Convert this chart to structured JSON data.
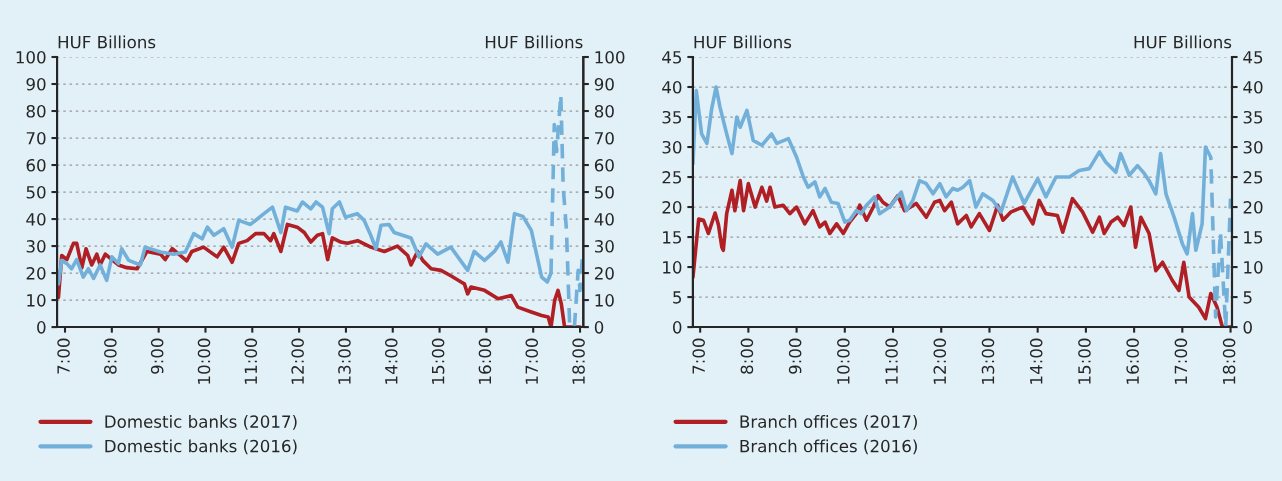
{
  "chart_data": [
    {
      "type": "line",
      "ylabel": "HUF Billions",
      "y2label": "HUF Billions",
      "xlim": [
        6.83,
        18.07
      ],
      "xticks": [
        {
          "value": 7,
          "label": "7:00"
        },
        {
          "value": 8,
          "label": "8:00"
        },
        {
          "value": 9,
          "label": "9:00"
        },
        {
          "value": 10,
          "label": "10:00"
        },
        {
          "value": 11,
          "label": "11:00"
        },
        {
          "value": 12,
          "label": "12:00"
        },
        {
          "value": 13,
          "label": "13:00"
        },
        {
          "value": 14,
          "label": "14:00"
        },
        {
          "value": 15,
          "label": "15:00"
        },
        {
          "value": 16,
          "label": "16:00"
        },
        {
          "value": 17,
          "label": "17:00"
        },
        {
          "value": 18,
          "label": "18:00"
        }
      ],
      "ylim": [
        0,
        100
      ],
      "yticks": [
        0,
        10,
        20,
        30,
        40,
        50,
        60,
        70,
        80,
        90,
        100
      ],
      "y2lim": [
        0,
        100
      ],
      "y2ticks": [
        0,
        10,
        20,
        30,
        40,
        50,
        60,
        70,
        80,
        90,
        100
      ],
      "grid": "y",
      "legend": "bottom left",
      "series": [
        {
          "name": "Domestic banks (2017)",
          "color": "#b01f24",
          "line_style": "solid",
          "x": [
            6.86,
            6.93,
            7.04,
            7.18,
            7.25,
            7.36,
            7.45,
            7.57,
            7.68,
            7.75,
            7.86,
            8.0,
            8.14,
            8.32,
            8.54,
            8.75,
            9.04,
            9.14,
            9.29,
            9.43,
            9.6,
            9.71,
            9.96,
            10.25,
            10.39,
            10.57,
            10.71,
            10.89,
            11.07,
            11.25,
            11.39,
            11.46,
            11.61,
            11.75,
            11.96,
            12.11,
            12.25,
            12.39,
            12.5,
            12.61,
            12.71,
            12.89,
            13.03,
            13.25,
            13.53,
            13.82,
            14.1,
            14.32,
            14.39,
            14.53,
            14.64,
            14.82,
            15.03,
            15.24,
            15.46,
            15.53,
            15.6,
            15.67,
            15.96,
            16.25,
            16.53,
            16.67,
            16.96,
            17.18,
            17.32,
            17.38,
            17.46,
            17.53,
            17.6,
            17.67,
            17.96,
            18.0
          ],
          "values": [
            11,
            26.5,
            25,
            31,
            31,
            22,
            29,
            23,
            27,
            23,
            27,
            25,
            23,
            22,
            21.6,
            28,
            27,
            25,
            29,
            27,
            24.5,
            28,
            29.6,
            26,
            29.6,
            24,
            31,
            32,
            34.6,
            34.6,
            32,
            34.6,
            28,
            38,
            37,
            35,
            31.5,
            34,
            34.6,
            25,
            33,
            31.5,
            31,
            32,
            29.6,
            28,
            30,
            26.5,
            23,
            28,
            24.7,
            21.6,
            21,
            19,
            16.7,
            16,
            12.3,
            14.8,
            13.6,
            10.5,
            11.7,
            7.4,
            5.6,
            4.3,
            3.7,
            0,
            10,
            13.6,
            8.6,
            0,
            0,
            0
          ]
        },
        {
          "name": "Domestic banks (2016)",
          "color": "#72b0da",
          "line_style": "solid",
          "x": [
            6.86,
            6.93,
            7.04,
            7.14,
            7.25,
            7.39,
            7.5,
            7.61,
            7.75,
            7.89,
            8.0,
            8.14,
            8.21,
            8.36,
            8.61,
            8.71,
            9.04,
            9.32,
            9.57,
            9.75,
            9.93,
            10.04,
            10.18,
            10.39,
            10.57,
            10.71,
            10.96,
            11.25,
            11.43,
            11.61,
            11.71,
            11.96,
            12.07,
            12.25,
            12.36,
            12.5,
            12.64,
            12.71,
            12.86,
            12.99,
            13.24,
            13.39,
            13.53,
            13.64,
            13.75,
            13.92,
            14.03,
            14.39,
            14.56,
            14.71,
            14.96,
            15.24,
            15.6,
            15.74,
            15.96,
            16.17,
            16.31,
            16.46,
            16.6,
            16.78,
            16.96,
            17.18,
            17.3,
            17.38
          ],
          "values": [
            16,
            24.7,
            23.5,
            21.6,
            25,
            18.5,
            21.6,
            18,
            23,
            17.3,
            26,
            23.5,
            29,
            24.7,
            23,
            29.6,
            27.8,
            27,
            27.8,
            34.6,
            32.7,
            37,
            34,
            36.4,
            29.6,
            39.5,
            38,
            42,
            44.4,
            35,
            44.4,
            43,
            46.3,
            43.8,
            46.3,
            44.4,
            34.6,
            43.8,
            46.3,
            40.7,
            42,
            39.5,
            34,
            29,
            37.7,
            38,
            35,
            33,
            26,
            30.8,
            27,
            29.6,
            21,
            28,
            24.7,
            28,
            31.5,
            24,
            42,
            41,
            35.8,
            18.5,
            16.7,
            20
          ]
        },
        {
          "color": "#72b0da",
          "line_style": "dashed",
          "x": [
            17.38,
            17.45,
            17.5,
            17.59,
            17.64,
            17.71,
            17.78,
            17.88,
            17.96,
            18.0,
            18.05
          ],
          "values": [
            20,
            75,
            65,
            86,
            52,
            36,
            0,
            0,
            21,
            13.6,
            26
          ]
        }
      ]
    },
    {
      "type": "line",
      "ylabel": "HUF Billions",
      "y2label": "HUF Billions",
      "xlim": [
        6.85,
        18.03
      ],
      "xticks": [
        {
          "value": 7,
          "label": "7:00"
        },
        {
          "value": 8,
          "label": "8:00"
        },
        {
          "value": 9,
          "label": "9:00"
        },
        {
          "value": 10,
          "label": "10:00"
        },
        {
          "value": 11,
          "label": "11:00"
        },
        {
          "value": 12,
          "label": "12:00"
        },
        {
          "value": 13,
          "label": "13:00"
        },
        {
          "value": 14,
          "label": "14:00"
        },
        {
          "value": 15,
          "label": "15:00"
        },
        {
          "value": 16,
          "label": "16:00"
        },
        {
          "value": 17,
          "label": "17:00"
        },
        {
          "value": 18,
          "label": "18:00"
        }
      ],
      "ylim": [
        0,
        45
      ],
      "yticks": [
        0,
        5,
        10,
        15,
        20,
        25,
        30,
        35,
        40,
        45
      ],
      "y2lim": [
        0,
        45
      ],
      "y2ticks": [
        0,
        5,
        10,
        15,
        20,
        25,
        30,
        35,
        40,
        45
      ],
      "grid": "y",
      "legend": "bottom left",
      "series": [
        {
          "name": "Branch offices (2017)",
          "color": "#b01f24",
          "line_style": "solid",
          "x": [
            6.85,
            6.97,
            7.07,
            7.17,
            7.31,
            7.38,
            7.45,
            7.48,
            7.55,
            7.66,
            7.72,
            7.83,
            7.9,
            8.0,
            8.14,
            8.28,
            8.38,
            8.45,
            8.55,
            8.72,
            8.86,
            9.0,
            9.17,
            9.34,
            9.48,
            9.59,
            9.69,
            9.83,
            9.97,
            10.1,
            10.24,
            10.31,
            10.45,
            10.59,
            10.69,
            10.79,
            10.93,
            11.1,
            11.24,
            11.48,
            11.69,
            11.86,
            11.97,
            12.07,
            12.21,
            12.34,
            12.52,
            12.62,
            12.79,
            13.0,
            13.17,
            13.28,
            13.45,
            13.69,
            13.9,
            14.03,
            14.17,
            14.41,
            14.52,
            14.72,
            14.93,
            15.14,
            15.28,
            15.38,
            15.52,
            15.66,
            15.79,
            15.93,
            16.03,
            16.14,
            16.31,
            16.45,
            16.59,
            16.79,
            16.93,
            17.03,
            17.14,
            17.34,
            17.48,
            17.59,
            17.72,
            17.83,
            18.0
          ],
          "values": [
            8.3,
            18,
            17.8,
            15.6,
            19,
            17,
            13.3,
            12.8,
            18.9,
            22.8,
            19.4,
            24.4,
            19.4,
            23.9,
            20,
            23.3,
            21,
            23.3,
            20,
            20.3,
            18.9,
            20,
            17.2,
            19.4,
            16.7,
            17.5,
            15.6,
            17.2,
            15.6,
            17.5,
            18.9,
            20.3,
            17.8,
            20,
            21.9,
            20.8,
            20,
            21.9,
            19.4,
            20.6,
            18.3,
            20.8,
            21.1,
            19.4,
            20.8,
            17.2,
            18.6,
            16.7,
            18.9,
            16.1,
            20.3,
            17.8,
            19.2,
            20,
            17.2,
            21.1,
            18.9,
            18.6,
            15.8,
            21.4,
            19.2,
            15.8,
            18.3,
            15.6,
            17.5,
            18.3,
            16.9,
            20,
            13.3,
            18.3,
            15.6,
            9.4,
            10.8,
            7.8,
            6.1,
            10.8,
            5,
            3.3,
            1.4,
            5.6,
            3.3,
            0,
            0
          ]
        },
        {
          "name": "Branch offices (2016)",
          "color": "#72b0da",
          "line_style": "solid",
          "x": [
            6.85,
            6.92,
            7.03,
            7.14,
            7.24,
            7.33,
            7.41,
            7.55,
            7.66,
            7.76,
            7.83,
            7.97,
            8.1,
            8.28,
            8.48,
            8.59,
            8.83,
            9.0,
            9.14,
            9.24,
            9.38,
            9.48,
            9.59,
            9.72,
            9.86,
            10.0,
            10.1,
            10.24,
            10.34,
            10.45,
            10.62,
            10.72,
            10.93,
            11.17,
            11.28,
            11.41,
            11.55,
            11.69,
            11.83,
            11.97,
            12.1,
            12.24,
            12.34,
            12.45,
            12.59,
            12.72,
            12.86,
            13.07,
            13.24,
            13.48,
            13.72,
            14.0,
            14.17,
            14.38,
            14.66,
            14.86,
            15.07,
            15.28,
            15.41,
            15.62,
            15.72,
            15.9,
            16.07,
            16.21,
            16.31,
            16.45,
            16.55,
            16.66,
            16.83,
            17.0,
            17.1,
            17.21,
            17.28,
            17.41,
            17.48
          ],
          "values": [
            27.2,
            39.4,
            32.2,
            30.6,
            36.4,
            40,
            36.7,
            32.2,
            28.9,
            35,
            33.3,
            36.1,
            31.1,
            30.3,
            32.2,
            30.6,
            31.4,
            28.3,
            25,
            23.3,
            24.2,
            21.7,
            23.1,
            20.8,
            20.6,
            17.5,
            17.8,
            19.4,
            18.9,
            20.3,
            21.7,
            18.9,
            20,
            22.5,
            19.4,
            21.1,
            24.4,
            23.9,
            22.2,
            23.9,
            21.7,
            23.1,
            22.8,
            23.3,
            24.4,
            20,
            22.2,
            21.1,
            19.2,
            25,
            20.6,
            24.7,
            21.7,
            25,
            25,
            26.1,
            26.4,
            29.2,
            27.5,
            25.8,
            28.9,
            25.3,
            26.9,
            25.6,
            24.4,
            22.2,
            28.9,
            22.2,
            18.3,
            13.9,
            12.2,
            18.9,
            12.8,
            17.2,
            30
          ]
        },
        {
          "color": "#72b0da",
          "line_style": "dashed",
          "x": [
            17.48,
            17.59,
            17.69,
            17.79,
            17.9,
            18.0
          ],
          "values": [
            30,
            28.3,
            1.7,
            15.8,
            0,
            21.4
          ]
        }
      ]
    }
  ]
}
